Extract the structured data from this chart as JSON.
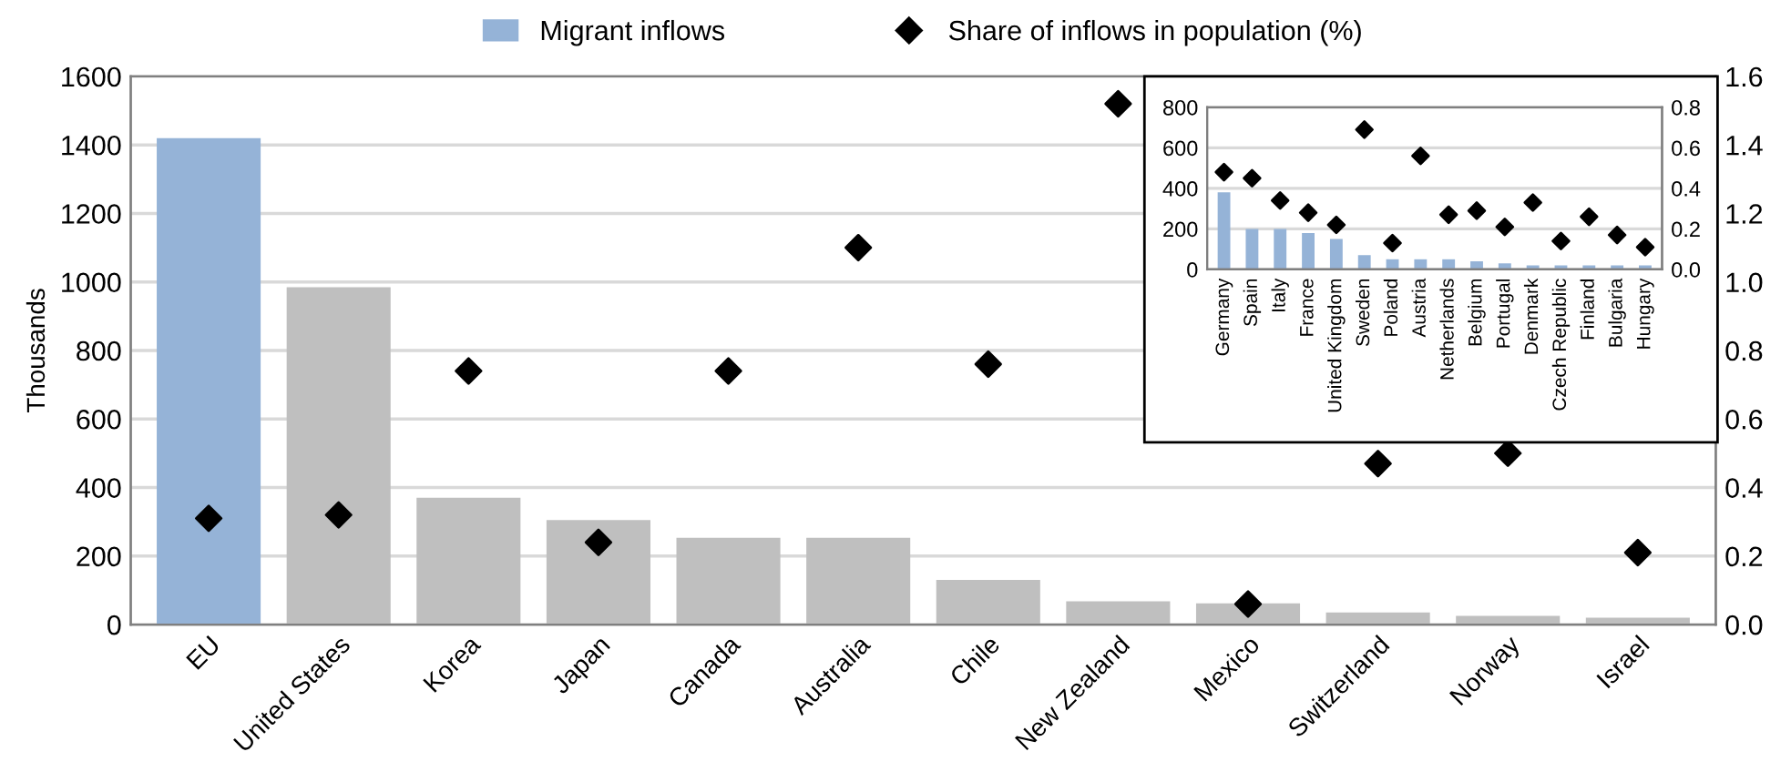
{
  "chart_data": [
    {
      "type": "bar",
      "categories": [
        "EU",
        "United States",
        "Korea",
        "Japan",
        "Canada",
        "Australia",
        "Chile",
        "New Zealand",
        "Mexico",
        "Switzerland",
        "Norway",
        "Israel"
      ],
      "series": [
        {
          "name": "Migrant inflows",
          "color": "#95b3d7",
          "colors": [
            "#95b3d7",
            "#bfbfbf",
            "#bfbfbf",
            "#bfbfbf",
            "#bfbfbf",
            "#bfbfbf",
            "#bfbfbf",
            "#bfbfbf",
            "#bfbfbf",
            "#bfbfbf",
            "#bfbfbf",
            "#bfbfbf"
          ],
          "values": [
            1420,
            985,
            370,
            305,
            253,
            253,
            130,
            68,
            62,
            35,
            25,
            20
          ]
        },
        {
          "name": "Share of inflows in population (%)",
          "type": "scatter",
          "axis": "y2",
          "marker": "diamond",
          "color": "#000000",
          "values": [
            0.31,
            0.32,
            0.74,
            0.24,
            0.74,
            1.1,
            0.76,
            1.52,
            0.06,
            0.47,
            0.5,
            0.21
          ]
        }
      ],
      "ylabel": "Thousands",
      "ylim": [
        0,
        1600
      ],
      "yticks": [
        0,
        200,
        400,
        600,
        800,
        1000,
        1200,
        1400,
        1600
      ],
      "y2lim": [
        0,
        1.6
      ],
      "y2ticks": [
        {
          "value": 0,
          "label": "0.0"
        },
        {
          "value": 0.2,
          "label": "0.2"
        },
        {
          "value": 0.4,
          "label": "0.4"
        },
        {
          "value": 0.6,
          "label": "0.6"
        },
        {
          "value": 0.8,
          "label": "0.8"
        },
        {
          "value": 1.0,
          "label": "1.0"
        },
        {
          "value": 1.2,
          "label": "1.2"
        },
        {
          "value": 1.4,
          "label": "1.4"
        },
        {
          "value": 1.6,
          "label": "1.6"
        }
      ],
      "grid": "y",
      "legend": "top"
    },
    {
      "type": "bar",
      "categories": [
        "Germany",
        "Spain",
        "Italy",
        "France",
        "United Kingdom",
        "Sweden",
        "Poland",
        "Austria",
        "Netherlands",
        "Belgium",
        "Portugal",
        "Denmark",
        "Czech Republic",
        "Finland",
        "Bulgaria",
        "Hungary"
      ],
      "series": [
        {
          "color": "#95b3d7",
          "values": [
            380,
            200,
            200,
            180,
            150,
            70,
            50,
            50,
            50,
            40,
            30,
            20,
            20,
            20,
            20,
            20
          ]
        },
        {
          "type": "scatter",
          "axis": "y2",
          "marker": "diamond",
          "color": "#000000",
          "values": [
            0.48,
            0.45,
            0.34,
            0.28,
            0.22,
            0.69,
            0.13,
            0.56,
            0.27,
            0.29,
            0.21,
            0.33,
            0.14,
            0.26,
            0.17,
            0.11
          ]
        }
      ],
      "ylim": [
        0,
        800
      ],
      "yticks": [
        0,
        200,
        400,
        600,
        800
      ],
      "y2lim": [
        0,
        0.8
      ],
      "y2ticks": [
        {
          "value": 0,
          "label": "0.0"
        },
        {
          "value": 0.2,
          "label": "0.2"
        },
        {
          "value": 0.4,
          "label": "0.4"
        },
        {
          "value": 0.6,
          "label": "0.6"
        },
        {
          "value": 0.8,
          "label": "0.8"
        }
      ],
      "grid": "y",
      "legend": false
    }
  ]
}
